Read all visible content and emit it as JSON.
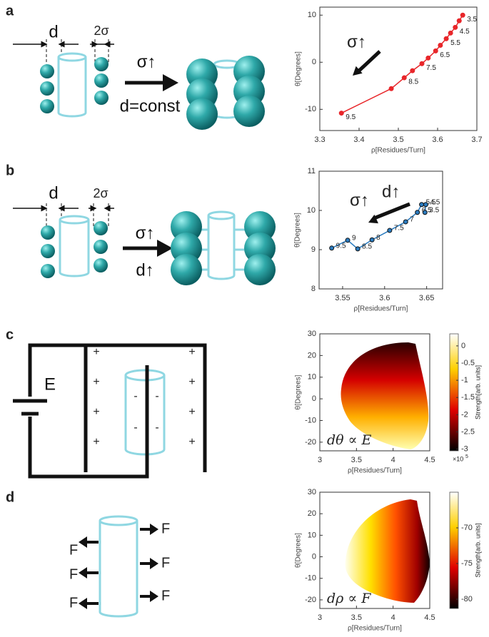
{
  "panels": [
    "a",
    "b",
    "c",
    "d"
  ],
  "diagrams": [
    {
      "spacing": "d",
      "diameter": "2σ",
      "change": "σ↑",
      "condition": "d=const"
    },
    {
      "spacing": "d",
      "diameter": "2σ",
      "change": "σ↑",
      "condition": "d↑"
    },
    {
      "source": "E",
      "plus": [
        "+",
        "+",
        "+",
        "+",
        "+",
        "+",
        "+",
        "+"
      ],
      "minus": [
        "-",
        "-",
        "-",
        "-"
      ]
    },
    {
      "forces": [
        "F",
        "F",
        "F",
        "F",
        "F",
        "F"
      ]
    }
  ],
  "chart_data": [
    {
      "type": "line",
      "xlabel": "ρ[Residues/Turn]",
      "ylabel": "θ[Degrees]",
      "x": [
        3.664,
        3.655,
        3.645,
        3.633,
        3.622,
        3.607,
        3.595,
        3.576,
        3.56,
        3.536,
        3.515,
        3.482,
        3.355
      ],
      "series": [
        {
          "color": "#e8262a",
          "values": [
            10,
            8.8,
            7.4,
            6.2,
            5.0,
            3.6,
            2.4,
            0.9,
            -0.3,
            -1.8,
            -3.3,
            -5.6,
            -10.8
          ],
          "point_labels": [
            "3.5",
            null,
            "4.5",
            null,
            "5.5",
            null,
            "6.5",
            null,
            "7.5",
            null,
            "8.5",
            null,
            "9.5"
          ]
        }
      ],
      "xlim": [
        3.3,
        3.7
      ],
      "xticks": [
        3.3,
        3.4,
        3.5,
        3.6,
        3.7
      ],
      "ylim": [
        -14.5,
        11.7
      ],
      "yticks": [
        -10,
        0,
        10
      ],
      "annotations": [
        "σ↑"
      ]
    },
    {
      "type": "line",
      "xlabel": "ρ[Residues/Turn]",
      "ylabel": "θ[Degrees]",
      "x": [
        3.537,
        3.556,
        3.568,
        3.585,
        3.606,
        3.625,
        3.639,
        3.644,
        3.649,
        3.648
      ],
      "series": [
        {
          "color": "#2a7bbf",
          "values": [
            9.04,
            9.24,
            9.02,
            9.25,
            9.49,
            9.71,
            9.95,
            10.15,
            10.15,
            9.95
          ],
          "point_labels": [
            "9.5",
            "9",
            "8.5",
            "8",
            "7.5",
            "7",
            "6.5",
            "5.5",
            "4.5",
            "3.5"
          ]
        }
      ],
      "xlim": [
        3.522,
        3.669
      ],
      "xticks": [
        3.55,
        3.6,
        3.65
      ],
      "ylim": [
        8,
        11
      ],
      "yticks": [
        8,
        9,
        10,
        11
      ],
      "annotations": [
        "σ↑",
        "d↑"
      ]
    },
    {
      "type": "heatmap",
      "xlabel": "ρ[Residues/Turn]",
      "ylabel": "θ[Degrees]",
      "xlim": [
        3,
        4.5
      ],
      "xticks": [
        3,
        3.5,
        4,
        4.5
      ],
      "ylim": [
        -24,
        30
      ],
      "yticks": [
        -20,
        -10,
        0,
        10,
        20,
        30
      ],
      "colorbar": {
        "label": "Strength[arb. units]",
        "lim": [
          -3.05,
          0.35
        ],
        "ticks": [
          -3,
          -2.5,
          -2,
          -1.5,
          -1,
          -0.5,
          0
        ],
        "multiplier": "×10",
        "exponent": 5
      },
      "annotations": [
        "dθ ∝ E"
      ]
    },
    {
      "type": "heatmap",
      "xlabel": "ρ[Residues/Turn]",
      "ylabel": "θ[Degrees]",
      "xlim": [
        3,
        4.5
      ],
      "xticks": [
        3,
        3.5,
        4,
        4.5
      ],
      "ylim": [
        -24,
        30
      ],
      "yticks": [
        -20,
        -10,
        0,
        10,
        20,
        30
      ],
      "colorbar": {
        "label": "Strength[arb. units]",
        "lim": [
          -81.3,
          -65
        ],
        "ticks": [
          -80,
          -75,
          -70
        ]
      },
      "annotations": [
        "dρ ∝ F"
      ]
    }
  ]
}
